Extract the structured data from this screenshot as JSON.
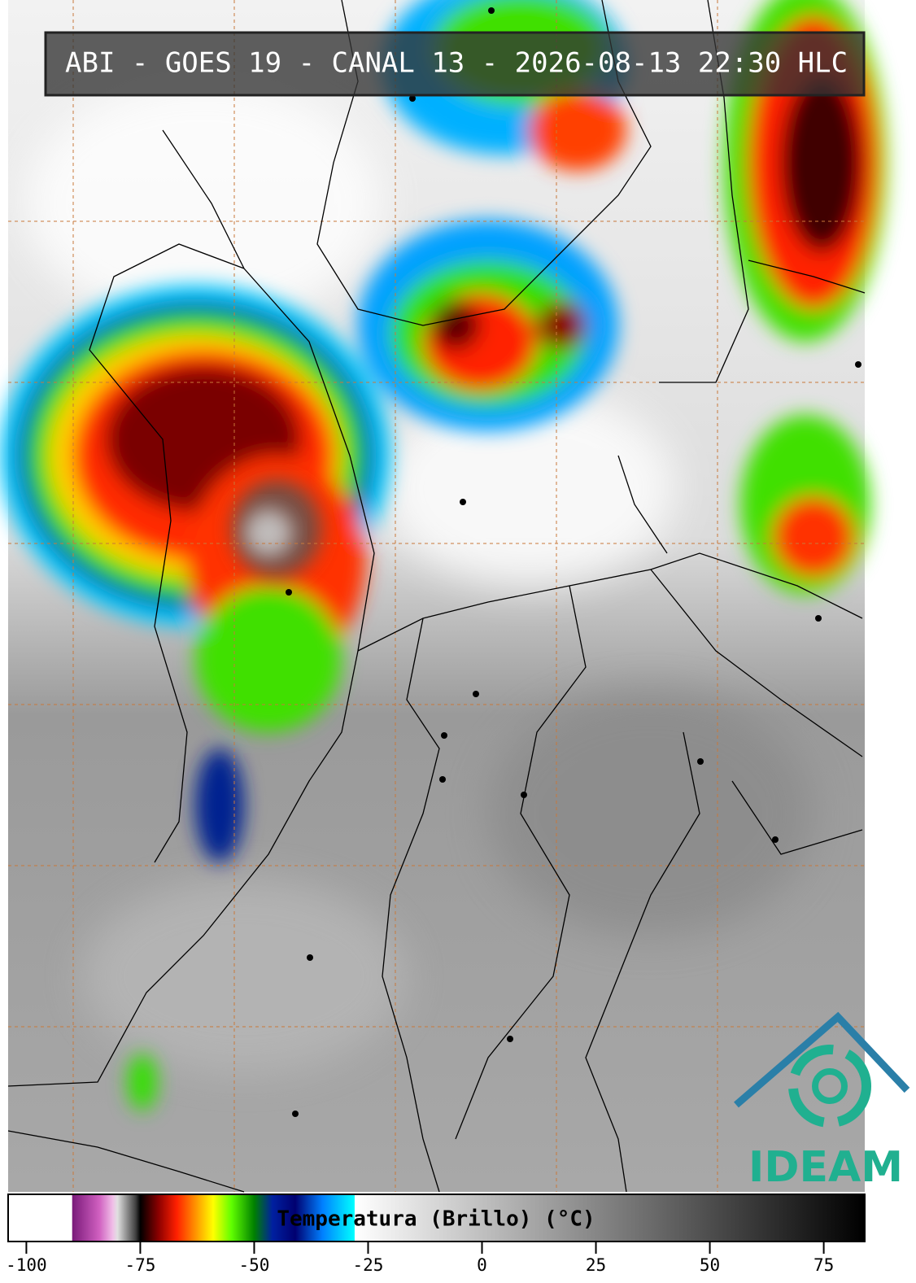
{
  "title": "ABI - GOES 19 - CANAL 13 - 2026-08-13 22:30 HLC",
  "logo": "IDEAM",
  "colorbar": {
    "label": "Temperatura (Brillo) (°C)",
    "xlim": [
      -104,
      84
    ],
    "xticks": [
      -100,
      -75,
      -50,
      -25,
      0,
      25,
      50,
      75
    ],
    "stops": [
      {
        "value": -104,
        "color": "#ffffff"
      },
      {
        "value": -90,
        "color": "#ffffff"
      },
      {
        "value": -89.9,
        "color": "#7a1a7a"
      },
      {
        "value": -84,
        "color": "#d060c0"
      },
      {
        "value": -81,
        "color": "#f0c0e8"
      },
      {
        "value": -80,
        "color": "#e0e0e0"
      },
      {
        "value": -76,
        "color": "#404040"
      },
      {
        "value": -75,
        "color": "#000000"
      },
      {
        "value": -71,
        "color": "#8b0000"
      },
      {
        "value": -67,
        "color": "#ff2000"
      },
      {
        "value": -63,
        "color": "#ff9000"
      },
      {
        "value": -59,
        "color": "#ffff00"
      },
      {
        "value": -55,
        "color": "#60ff00"
      },
      {
        "value": -50,
        "color": "#008000"
      },
      {
        "value": -46,
        "color": "#0020a0"
      },
      {
        "value": -41,
        "color": "#000070"
      },
      {
        "value": -35,
        "color": "#0080ff"
      },
      {
        "value": -28,
        "color": "#00ffff"
      },
      {
        "value": -27.9,
        "color": "#ffffff"
      },
      {
        "value": 84,
        "color": "#000000"
      }
    ]
  }
}
